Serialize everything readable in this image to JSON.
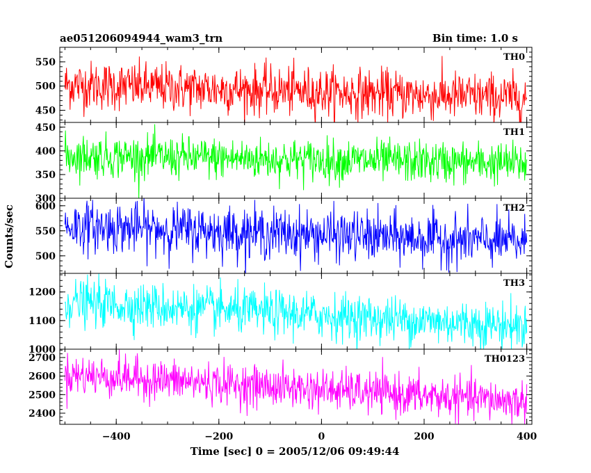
{
  "chart_data": {
    "type": "line",
    "title": "ae051206094944_wam3_trn",
    "subtitle": "Bin time: 1.0 s",
    "xlabel": "Time [sec] 0 = 2005/12/06 09:49:44",
    "ylabel": "Counts/sec",
    "xlim": [
      -510,
      410
    ],
    "x_ticks": [
      -400,
      -200,
      0,
      200,
      400
    ],
    "x_tick_labels": [
      "−400",
      "−200",
      "0",
      "200",
      "400"
    ],
    "x_range": [
      -500,
      400
    ],
    "bin_time": 1.0,
    "grid": false,
    "panels": [
      {
        "name": "TH0",
        "color": "#ff0000",
        "ylim": [
          425,
          580
        ],
        "y_ticks": [
          450,
          500,
          550
        ],
        "y_tick_labels": [
          "450",
          "500",
          "550"
        ],
        "mean_start": 503,
        "mean_end": 475,
        "noise": 25
      },
      {
        "name": "TH1",
        "color": "#00ff00",
        "ylim": [
          300,
          460
        ],
        "y_ticks": [
          300,
          350,
          400,
          450
        ],
        "y_tick_labels": [
          "300",
          "350",
          "400",
          "450"
        ],
        "mean_start": 390,
        "mean_end": 373,
        "noise": 22
      },
      {
        "name": "TH2",
        "color": "#0000ff",
        "ylim": [
          465,
          615
        ],
        "y_ticks": [
          500,
          550,
          600
        ],
        "y_tick_labels": [
          "500",
          "550",
          "600"
        ],
        "mean_start": 560,
        "mean_end": 527,
        "noise": 25
      },
      {
        "name": "TH3",
        "color": "#00ffff",
        "ylim": [
          1000,
          1265
        ],
        "y_ticks": [
          1000,
          1100,
          1200
        ],
        "y_tick_labels": [
          "1000",
          "1100",
          "1200"
        ],
        "mean_start": 1165,
        "mean_end": 1080,
        "noise": 40
      },
      {
        "name": "TH0123",
        "color": "#ff00ff",
        "ylim": [
          2340,
          2745
        ],
        "y_ticks": [
          2400,
          2500,
          2600,
          2700
        ],
        "y_tick_labels": [
          "2400",
          "2500",
          "2600",
          "2700"
        ],
        "mean_start": 2610,
        "mean_end": 2460,
        "noise": 55
      }
    ]
  }
}
